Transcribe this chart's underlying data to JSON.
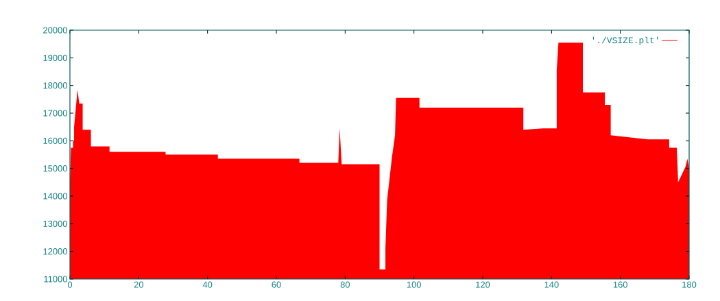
{
  "chart_data": {
    "type": "area",
    "x": [
      0,
      0.3,
      0.9,
      0.9,
      1.2,
      1.2,
      2.2,
      2.7,
      3.7,
      3.7,
      6.1,
      6.1,
      11.5,
      11.5,
      27.8,
      27.8,
      43,
      43,
      66.7,
      66.7,
      78,
      78.4,
      79,
      90,
      90,
      91.7,
      91.7,
      92.2,
      93.6,
      94.5,
      94.8,
      101.6,
      101.6,
      131.8,
      131.8,
      137.5,
      141.5,
      141.5,
      142,
      149.1,
      149.1,
      155.5,
      155.5,
      157.2,
      157.2,
      167.9,
      174.2,
      174.2,
      176.4,
      176.8,
      178.9,
      179.5,
      180
    ],
    "series": [
      {
        "name": "'./VSIZE.plt'",
        "color": "#ff0000",
        "values": [
          14550,
          15750,
          15750,
          16000,
          16000,
          16500,
          17850,
          17350,
          17350,
          16400,
          16400,
          15800,
          15800,
          15600,
          15600,
          15500,
          15500,
          15350,
          15350,
          15200,
          15200,
          16450,
          15150,
          15150,
          11350,
          11350,
          12100,
          13850,
          15400,
          16200,
          17550,
          17550,
          17200,
          17200,
          16400,
          16450,
          16450,
          18550,
          19550,
          19550,
          17750,
          17750,
          17300,
          17300,
          16200,
          16050,
          16050,
          15750,
          15750,
          14500,
          15050,
          15350,
          15000
        ]
      }
    ],
    "xlim": [
      0,
      180
    ],
    "ylim": [
      11000,
      20000
    ],
    "xticks": [
      0,
      20,
      40,
      60,
      80,
      100,
      120,
      140,
      160,
      180
    ],
    "yticks": [
      11000,
      12000,
      13000,
      14000,
      15000,
      16000,
      17000,
      18000,
      19000,
      20000
    ],
    "legend": "top right"
  }
}
